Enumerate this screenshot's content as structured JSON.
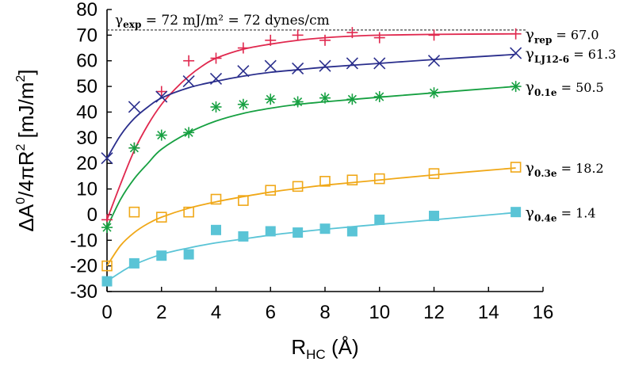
{
  "chart_data": {
    "type": "scatter",
    "xlabel": {
      "main": "R",
      "sub": "HC",
      "unit": " (Å)"
    },
    "ylabel": {
      "main": "ΔA",
      "sup1": "0",
      "mid": "/4πR",
      "sup2": "2",
      "unit": " [mJ/m",
      "sup3": "2",
      "end": "]"
    },
    "xlim": [
      0,
      16
    ],
    "ylim": [
      -30,
      80
    ],
    "xticks": [
      0,
      2,
      4,
      6,
      8,
      10,
      12,
      14,
      16
    ],
    "yticks": [
      -30,
      -20,
      -10,
      0,
      10,
      20,
      30,
      40,
      50,
      60,
      70,
      80
    ],
    "reference_line": {
      "y": 72,
      "text_pre": "γ",
      "text_sub": "exp",
      "text_post": " = 72 mJ/m² = 72 dynes/cm"
    },
    "series": [
      {
        "color": "#e0284e",
        "marker": "plus",
        "label": {
          "g": "γ",
          "sub": "rep",
          "val": " = 67.0"
        },
        "x": [
          0,
          1,
          2,
          3,
          4,
          5,
          6,
          7,
          8,
          9,
          10,
          12,
          15
        ],
        "y": [
          -2,
          26,
          48,
          60,
          61,
          65,
          68,
          70,
          68,
          71,
          69,
          70,
          70.5
        ],
        "fit": [
          [
            0,
            -2
          ],
          [
            0.5,
            12
          ],
          [
            1,
            25
          ],
          [
            1.5,
            35
          ],
          [
            2,
            43
          ],
          [
            2.5,
            49
          ],
          [
            3,
            54
          ],
          [
            3.5,
            58
          ],
          [
            4,
            61
          ],
          [
            5,
            64.5
          ],
          [
            6,
            66.5
          ],
          [
            7,
            68
          ],
          [
            8,
            69
          ],
          [
            9,
            69.6
          ],
          [
            10,
            70
          ],
          [
            12,
            70.3
          ],
          [
            15,
            70.5
          ]
        ]
      },
      {
        "color": "#2a2e8c",
        "marker": "cross",
        "label": {
          "g": "γ",
          "sub": "LJ12-6",
          "val": " = 61.3"
        },
        "x": [
          0,
          1,
          2,
          3,
          4,
          5,
          6,
          7,
          8,
          9,
          10,
          12,
          15
        ],
        "y": [
          22,
          42,
          46,
          52,
          53,
          56,
          58,
          57,
          58,
          59,
          59,
          60,
          63
        ],
        "fit": [
          [
            0,
            22
          ],
          [
            0.5,
            31
          ],
          [
            1,
            37.5
          ],
          [
            1.5,
            42
          ],
          [
            2,
            45.5
          ],
          [
            3,
            49.5
          ],
          [
            4,
            52
          ],
          [
            5,
            54
          ],
          [
            6,
            55.5
          ],
          [
            7,
            56.5
          ],
          [
            8,
            57.5
          ],
          [
            10,
            59
          ],
          [
            12,
            60.5
          ],
          [
            15,
            62.5
          ]
        ]
      },
      {
        "color": "#16a041",
        "marker": "star",
        "label": {
          "g": "γ",
          "sub": "0.1e",
          "val": " = 50.5"
        },
        "x": [
          0,
          1,
          2,
          3,
          4,
          5,
          6,
          7,
          8,
          9,
          10,
          12,
          15
        ],
        "y": [
          -5,
          26,
          31,
          32,
          42,
          43,
          45,
          44,
          45.5,
          45,
          46,
          47.5,
          50
        ],
        "fit": [
          [
            0,
            -5
          ],
          [
            0.5,
            6
          ],
          [
            1,
            14
          ],
          [
            1.5,
            20
          ],
          [
            2,
            25.5
          ],
          [
            3,
            32
          ],
          [
            4,
            36.5
          ],
          [
            5,
            39.5
          ],
          [
            6,
            41.5
          ],
          [
            7,
            43
          ],
          [
            8,
            44
          ],
          [
            10,
            45.8
          ],
          [
            12,
            47.5
          ],
          [
            15,
            50
          ]
        ]
      },
      {
        "color": "#f0a818",
        "marker": "square-open",
        "label": {
          "g": "γ",
          "sub": "0.3e",
          "val": " = 18.2"
        },
        "x": [
          0,
          1,
          2,
          3,
          4,
          5,
          6,
          7,
          8,
          9,
          10,
          12,
          15
        ],
        "y": [
          -20,
          1,
          -1,
          1,
          6,
          5.5,
          9.5,
          11,
          13,
          13.5,
          14,
          16,
          18.5
        ],
        "fit": [
          [
            0,
            -20
          ],
          [
            0.5,
            -12
          ],
          [
            1,
            -7
          ],
          [
            1.5,
            -3.5
          ],
          [
            2,
            -1
          ],
          [
            3,
            2.5
          ],
          [
            4,
            5
          ],
          [
            5,
            7
          ],
          [
            6,
            8.8
          ],
          [
            7,
            10.2
          ],
          [
            8,
            11.5
          ],
          [
            10,
            13.5
          ],
          [
            12,
            15.5
          ],
          [
            15,
            18.2
          ]
        ]
      },
      {
        "color": "#5ac4d6",
        "marker": "square-filled",
        "label": {
          "g": "γ",
          "sub": "0.4e",
          "val": " = 1.4"
        },
        "x": [
          0,
          1,
          2,
          3,
          4,
          5,
          6,
          7,
          8,
          9,
          10,
          12,
          15
        ],
        "y": [
          -26,
          -19,
          -16,
          -15.5,
          -6,
          -8.5,
          -6.5,
          -7,
          -5.5,
          -6.5,
          -2,
          -0.5,
          1
        ],
        "fit": [
          [
            0,
            -26
          ],
          [
            0.5,
            -22.5
          ],
          [
            1,
            -19.5
          ],
          [
            2,
            -15.5
          ],
          [
            3,
            -13
          ],
          [
            4,
            -11
          ],
          [
            5,
            -9.5
          ],
          [
            6,
            -8
          ],
          [
            7,
            -6.8
          ],
          [
            8,
            -5.7
          ],
          [
            10,
            -3.8
          ],
          [
            12,
            -2
          ],
          [
            15,
            0.8
          ]
        ]
      }
    ]
  }
}
